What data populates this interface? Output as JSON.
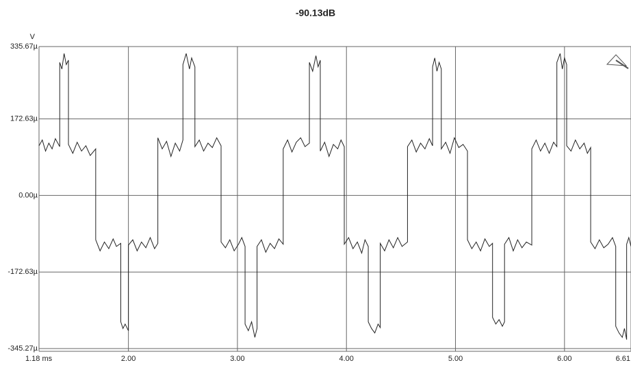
{
  "chart_data": {
    "type": "line",
    "title": "-90.13dB",
    "y_label": "V",
    "xlim": [
      1.18,
      6.61
    ],
    "ylim": [
      -345.27,
      335.67
    ],
    "xticks": [
      {
        "value": 1.18,
        "label": "1.18 ms"
      },
      {
        "value": 2,
        "label": "2.00"
      },
      {
        "value": 3,
        "label": "3.00"
      },
      {
        "value": 4,
        "label": "4.00"
      },
      {
        "value": 5,
        "label": "5.00"
      },
      {
        "value": 6,
        "label": "6.00"
      },
      {
        "value": 6.61,
        "label": "6.61"
      }
    ],
    "yticks": [
      {
        "value": 335.67,
        "label": "335.67µ"
      },
      {
        "value": 172.63,
        "label": "172.63µ"
      },
      {
        "value": 0,
        "label": "0.00µ"
      },
      {
        "value": -172.63,
        "label": "-172.63µ"
      },
      {
        "value": -345.27,
        "label": "-345.27µ"
      }
    ],
    "grid": true,
    "color": "#222222",
    "x": [
      1.18,
      1.21,
      1.24,
      1.27,
      1.3,
      1.33,
      1.37,
      1.37,
      1.39,
      1.41,
      1.43,
      1.45,
      1.45,
      1.49,
      1.53,
      1.57,
      1.61,
      1.65,
      1.7,
      1.7,
      1.74,
      1.78,
      1.82,
      1.86,
      1.89,
      1.93,
      1.93,
      1.95,
      1.97,
      2.0,
      2.0,
      2.04,
      2.08,
      2.12,
      2.16,
      2.2,
      2.24,
      2.27,
      2.27,
      2.31,
      2.35,
      2.39,
      2.43,
      2.47,
      2.5,
      2.5,
      2.53,
      2.56,
      2.58,
      2.61,
      2.61,
      2.65,
      2.69,
      2.73,
      2.77,
      2.81,
      2.85,
      2.85,
      2.89,
      2.93,
      2.97,
      3.01,
      3.04,
      3.07,
      3.07,
      3.1,
      3.13,
      3.16,
      3.18,
      3.18,
      3.22,
      3.26,
      3.3,
      3.34,
      3.38,
      3.42,
      3.42,
      3.46,
      3.5,
      3.54,
      3.58,
      3.62,
      3.66,
      3.66,
      3.69,
      3.72,
      3.74,
      3.76,
      3.76,
      3.8,
      3.84,
      3.88,
      3.92,
      3.95,
      3.98,
      3.98,
      4.02,
      4.06,
      4.1,
      4.14,
      4.17,
      4.2,
      4.2,
      4.23,
      4.26,
      4.29,
      4.31,
      4.31,
      4.35,
      4.39,
      4.43,
      4.47,
      4.51,
      4.56,
      4.56,
      4.6,
      4.64,
      4.68,
      4.72,
      4.76,
      4.79,
      4.79,
      4.81,
      4.83,
      4.85,
      4.87,
      4.87,
      4.91,
      4.95,
      4.99,
      5.03,
      5.07,
      5.11,
      5.11,
      5.15,
      5.19,
      5.23,
      5.27,
      5.31,
      5.34,
      5.34,
      5.37,
      5.4,
      5.43,
      5.45,
      5.45,
      5.49,
      5.53,
      5.57,
      5.61,
      5.65,
      5.7,
      5.7,
      5.74,
      5.78,
      5.82,
      5.86,
      5.9,
      5.93,
      5.93,
      5.96,
      5.98,
      6.0,
      6.02,
      6.02,
      6.06,
      6.1,
      6.14,
      6.18,
      6.21,
      6.24,
      6.24,
      6.28,
      6.32,
      6.36,
      6.4,
      6.44,
      6.47,
      6.47,
      6.5,
      6.53,
      6.55,
      6.57,
      6.57,
      6.59,
      6.61
    ],
    "values": [
      112,
      125,
      100,
      118,
      105,
      128,
      110,
      300,
      285,
      320,
      295,
      305,
      115,
      95,
      120,
      100,
      112,
      90,
      105,
      -100,
      -125,
      -105,
      -120,
      -98,
      -115,
      -108,
      -285,
      -300,
      -290,
      -305,
      -112,
      -100,
      -125,
      -105,
      -118,
      -95,
      -120,
      -108,
      130,
      105,
      122,
      88,
      118,
      100,
      125,
      295,
      320,
      285,
      310,
      290,
      110,
      125,
      100,
      118,
      108,
      130,
      112,
      -105,
      -118,
      -100,
      -125,
      -110,
      -95,
      -115,
      -290,
      -305,
      -285,
      -320,
      -300,
      -115,
      -100,
      -128,
      -108,
      -120,
      -98,
      -110,
      105,
      125,
      98,
      120,
      130,
      110,
      118,
      300,
      280,
      315,
      290,
      305,
      100,
      120,
      88,
      115,
      105,
      125,
      110,
      -110,
      -95,
      -120,
      -105,
      -130,
      -100,
      -115,
      -285,
      -300,
      -310,
      -290,
      -298,
      -108,
      -125,
      -100,
      -118,
      -95,
      -115,
      -105,
      110,
      125,
      98,
      118,
      105,
      128,
      112,
      290,
      310,
      280,
      300,
      285,
      105,
      120,
      95,
      130,
      108,
      115,
      100,
      -100,
      -120,
      -105,
      -125,
      -98,
      -115,
      -108,
      -275,
      -290,
      -280,
      -295,
      -285,
      -110,
      -95,
      -125,
      -100,
      -118,
      -105,
      -112,
      105,
      125,
      100,
      118,
      95,
      120,
      110,
      300,
      320,
      285,
      310,
      295,
      112,
      100,
      125,
      105,
      118,
      95,
      108,
      -105,
      -120,
      -100,
      -118,
      -110,
      -95,
      -115,
      -295,
      -310,
      -320,
      -300,
      -325,
      -110,
      -95,
      -115
    ]
  }
}
